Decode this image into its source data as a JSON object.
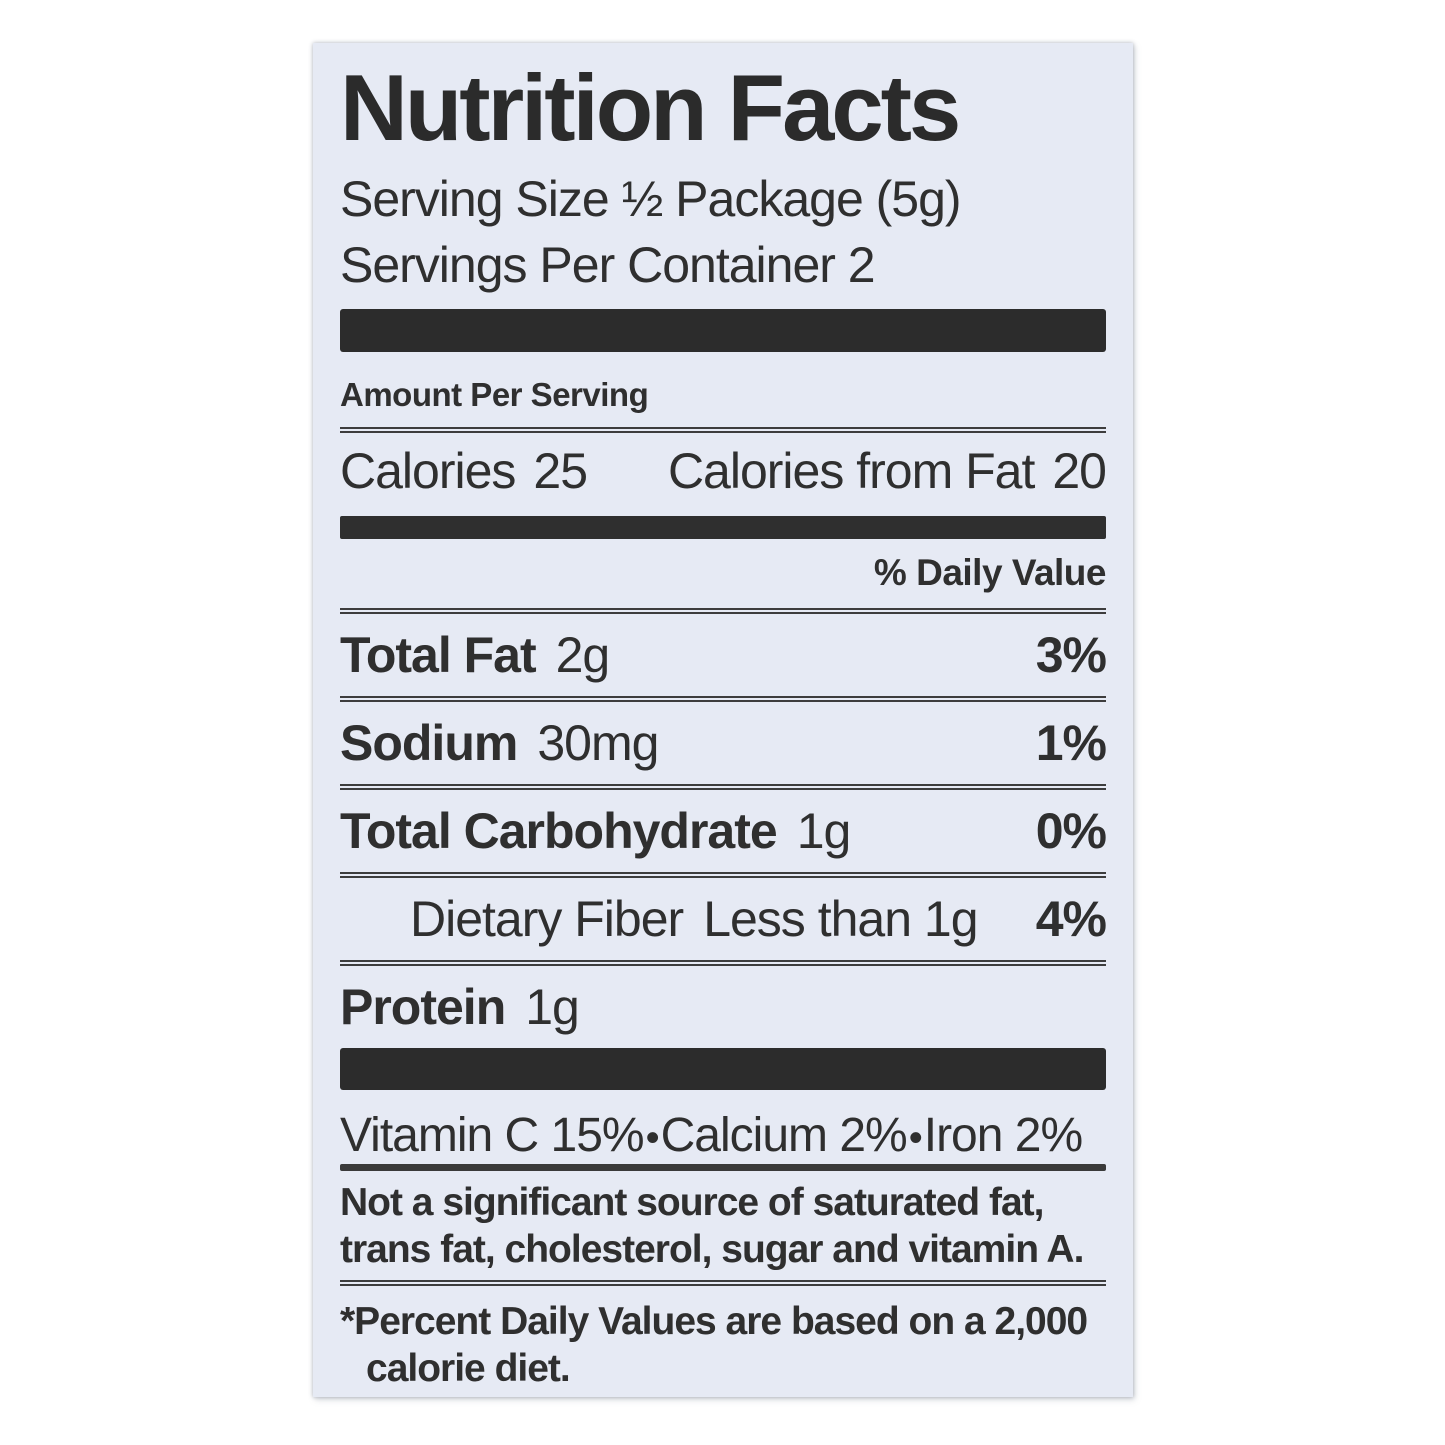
{
  "label": {
    "title": "Nutrition Facts",
    "serving_size_line": "Serving Size ½ Package (5g)",
    "servings_line": "Servings Per Container 2",
    "amount_per_serving": "Amount Per Serving",
    "calories": {
      "label": "Calories",
      "value": "25",
      "from_fat_label": "Calories from Fat",
      "from_fat_value": "20"
    },
    "daily_value_header": "% Daily Value",
    "nutrients": [
      {
        "name": "Total Fat",
        "amount": "2g",
        "dv": "3%"
      },
      {
        "name": "Sodium",
        "amount": "30mg",
        "dv": "1%"
      },
      {
        "name": "Total Carbohydrate",
        "amount": "1g",
        "dv": "0%"
      },
      {
        "name": "Dietary Fiber",
        "amount": "Less than 1g",
        "dv": "4%"
      },
      {
        "name": "Protein",
        "amount": "1g",
        "dv": ""
      }
    ],
    "bullet": "•",
    "vitamins": [
      {
        "name": "Vitamin C",
        "value": "15%"
      },
      {
        "name": "Calcium",
        "value": "2%"
      },
      {
        "name": "Iron",
        "value": "2%"
      }
    ],
    "not_significant_note_lines": [
      "Not a significant source of saturated fat,",
      "trans fat, cholesterol, sugar and vitamin A."
    ],
    "daily_values_footnote_lines": [
      "*Percent Daily Values are based on a 2,000",
      "calorie diet."
    ],
    "colors": {
      "label_background": "#e6eaf4",
      "text": "#2f2f2f",
      "bars": "#2c2c2c"
    }
  }
}
